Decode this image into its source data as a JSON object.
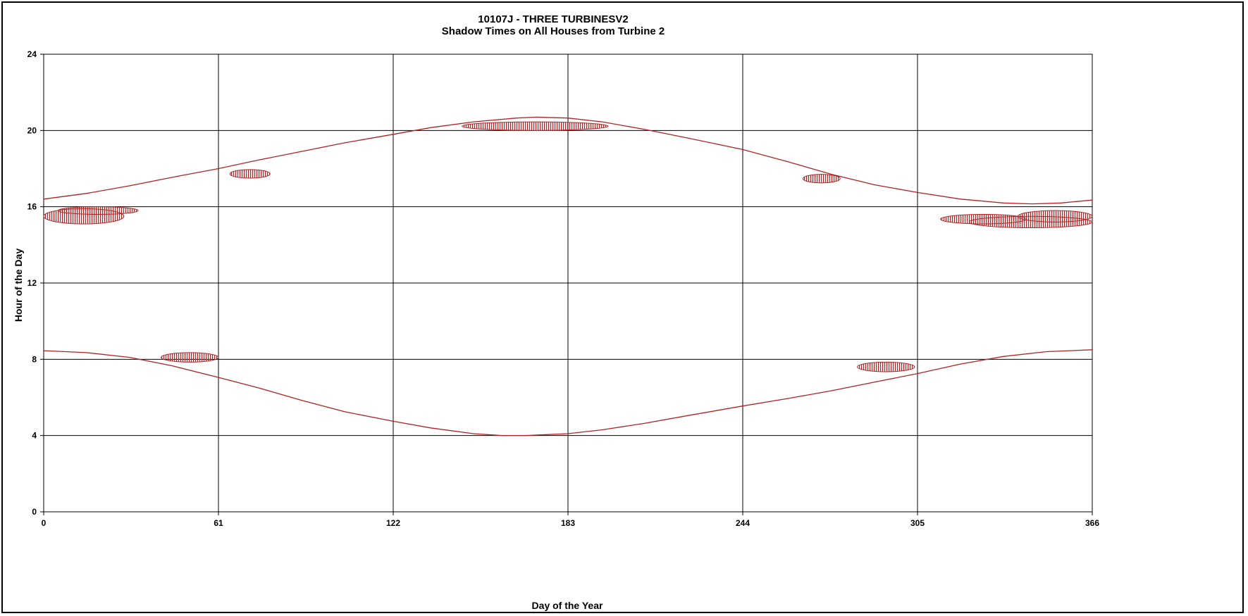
{
  "chart_data": {
    "type": "scatter",
    "title": "10107J - THREE TURBINESV2",
    "subtitle": "Shadow Times on All Houses from Turbine 2",
    "xlabel": "Day of the Year",
    "ylabel": "Hour of the Day",
    "xlim": [
      0,
      366
    ],
    "ylim": [
      0,
      24
    ],
    "x_ticks": [
      0,
      61,
      122,
      183,
      244,
      305,
      366
    ],
    "y_ticks": [
      0,
      4,
      8,
      12,
      16,
      20,
      24
    ],
    "grid": true,
    "legend": "none",
    "colors": {
      "series": "#b22222",
      "grid": "#000000"
    },
    "sunset_curve": {
      "x": [
        0,
        15,
        30,
        45,
        61,
        75,
        90,
        105,
        122,
        135,
        150,
        165,
        172,
        183,
        195,
        210,
        225,
        244,
        260,
        275,
        290,
        305,
        320,
        335,
        345,
        355,
        366
      ],
      "y": [
        16.4,
        16.7,
        17.1,
        17.55,
        18.0,
        18.45,
        18.9,
        19.35,
        19.8,
        20.15,
        20.45,
        20.65,
        20.7,
        20.65,
        20.45,
        20.05,
        19.6,
        19.0,
        18.35,
        17.7,
        17.15,
        16.75,
        16.4,
        16.2,
        16.15,
        16.2,
        16.35
      ]
    },
    "sunrise_curve": {
      "x": [
        0,
        15,
        30,
        45,
        61,
        75,
        90,
        105,
        122,
        135,
        150,
        160,
        168,
        183,
        195,
        210,
        225,
        244,
        260,
        275,
        290,
        305,
        320,
        335,
        350,
        366
      ],
      "y": [
        8.45,
        8.35,
        8.1,
        7.65,
        7.05,
        6.5,
        5.85,
        5.25,
        4.75,
        4.4,
        4.1,
        4.0,
        4.0,
        4.1,
        4.3,
        4.65,
        5.05,
        5.55,
        5.95,
        6.35,
        6.8,
        7.25,
        7.75,
        8.15,
        8.4,
        8.5
      ]
    },
    "shadow_areas": [
      {
        "x": [
          0,
          28
        ],
        "y": [
          15.1,
          15.9
        ]
      },
      {
        "x": [
          5,
          33
        ],
        "y": [
          15.6,
          16.0
        ]
      },
      {
        "x": [
          41,
          61
        ],
        "y": [
          7.85,
          8.35
        ]
      },
      {
        "x": [
          65,
          79
        ],
        "y": [
          17.5,
          17.95
        ]
      },
      {
        "x": [
          146,
          197
        ],
        "y": [
          20.0,
          20.45
        ]
      },
      {
        "x": [
          265,
          278
        ],
        "y": [
          17.25,
          17.7
        ]
      },
      {
        "x": [
          284,
          304
        ],
        "y": [
          7.35,
          7.85
        ]
      },
      {
        "x": [
          313,
          343
        ],
        "y": [
          15.1,
          15.6
        ]
      },
      {
        "x": [
          323,
          366
        ],
        "y": [
          14.9,
          15.5
        ]
      },
      {
        "x": [
          340,
          366
        ],
        "y": [
          15.2,
          15.8
        ]
      }
    ]
  }
}
